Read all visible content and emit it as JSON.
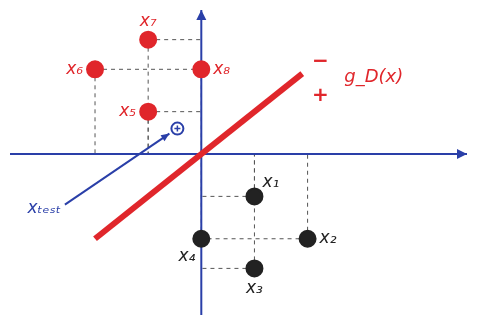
{
  "chart_data": {
    "type": "scatter",
    "tick_labels": false,
    "grid": false,
    "xlim": [
      -3.6,
      5
    ],
    "ylim": [
      -3.8,
      3.4
    ],
    "points": [
      {
        "label": "x₁",
        "x": 1,
        "y": -1,
        "color": "#222222"
      },
      {
        "label": "x₂",
        "x": 2,
        "y": -2,
        "color": "#222222"
      },
      {
        "label": "x₃",
        "x": 1,
        "y": -2.7,
        "color": "#222222"
      },
      {
        "label": "x₄",
        "x": 0,
        "y": -2,
        "color": "#222222"
      },
      {
        "label": "x₅",
        "x": -1,
        "y": 1,
        "color": "#e0262b"
      },
      {
        "label": "x₆",
        "x": -2,
        "y": 2,
        "color": "#e0262b"
      },
      {
        "label": "x₇",
        "x": -1,
        "y": 2.7,
        "color": "#e0262b"
      },
      {
        "label": "x₈",
        "x": 0,
        "y": 2,
        "color": "#e0262b"
      },
      {
        "label": "xₜₑₛₜ",
        "x": -0.45,
        "y": 0.6,
        "color": "#2a3fa8"
      }
    ],
    "boundary": {
      "label": "g_D(x)",
      "x": [
        -2,
        1.9
      ],
      "y": [
        -2,
        1.9
      ],
      "color": "#e0262b",
      "side_labels": [
        "−",
        "+"
      ]
    }
  }
}
